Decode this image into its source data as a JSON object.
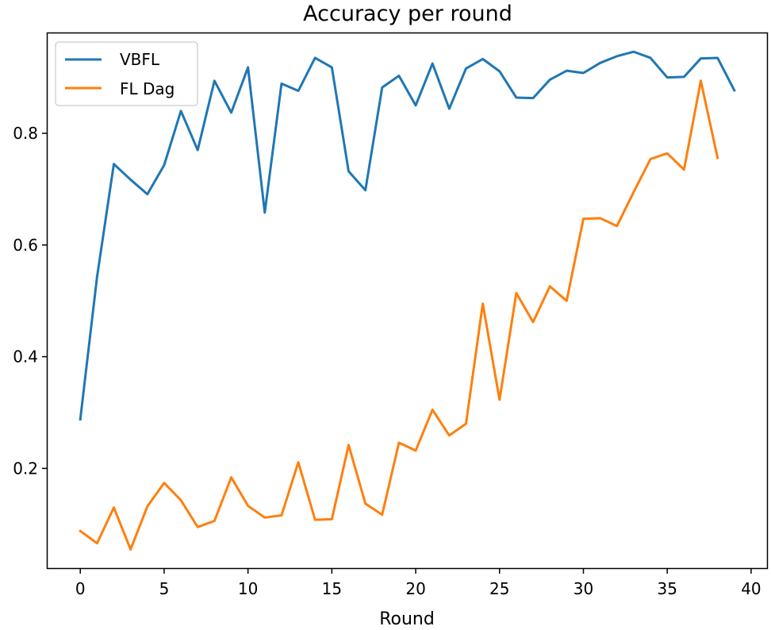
{
  "chart_data": {
    "type": "line",
    "title": "Accuracy per round",
    "xlabel": "Round",
    "ylabel": "",
    "xlim": [
      -1.95,
      40.95
    ],
    "ylim": [
      0.0215,
      0.979
    ],
    "xticks": [
      0,
      5,
      10,
      15,
      20,
      25,
      30,
      35,
      40
    ],
    "yticks": [
      0.2,
      0.4,
      0.6,
      0.8
    ],
    "grid": false,
    "legend_position": "top-left",
    "series": [
      {
        "name": "VBFL",
        "color": "#1f77b4",
        "x": [
          0,
          1,
          2,
          3,
          4,
          5,
          6,
          7,
          8,
          9,
          10,
          11,
          12,
          13,
          14,
          15,
          16,
          17,
          18,
          19,
          20,
          21,
          22,
          23,
          24,
          25,
          26,
          27,
          28,
          29,
          30,
          31,
          32,
          33,
          34,
          35,
          36,
          37,
          38,
          39
        ],
        "values": [
          0.288,
          0.543,
          0.745,
          0.717,
          0.691,
          0.743,
          0.84,
          0.77,
          0.894,
          0.837,
          0.918,
          0.658,
          0.889,
          0.876,
          0.935,
          0.918,
          0.732,
          0.698,
          0.882,
          0.903,
          0.85,
          0.925,
          0.844,
          0.916,
          0.933,
          0.911,
          0.864,
          0.863,
          0.896,
          0.912,
          0.908,
          0.926,
          0.938,
          0.946,
          0.935,
          0.9,
          0.901,
          0.934,
          0.935,
          0.877
        ]
      },
      {
        "name": "FL Dag",
        "color": "#ff7f0e",
        "x": [
          0,
          1,
          2,
          3,
          4,
          5,
          6,
          7,
          8,
          9,
          10,
          11,
          12,
          13,
          14,
          15,
          16,
          17,
          18,
          19,
          20,
          21,
          22,
          23,
          24,
          25,
          26,
          27,
          28,
          29,
          30,
          31,
          32,
          33,
          34,
          35,
          36,
          37,
          38
        ],
        "values": [
          0.088,
          0.066,
          0.13,
          0.055,
          0.132,
          0.174,
          0.143,
          0.095,
          0.106,
          0.184,
          0.133,
          0.112,
          0.116,
          0.211,
          0.108,
          0.109,
          0.242,
          0.137,
          0.117,
          0.246,
          0.232,
          0.305,
          0.259,
          0.28,
          0.495,
          0.323,
          0.514,
          0.462,
          0.526,
          0.5,
          0.647,
          0.648,
          0.634,
          0.695,
          0.754,
          0.764,
          0.735,
          0.894,
          0.756
        ]
      }
    ]
  }
}
